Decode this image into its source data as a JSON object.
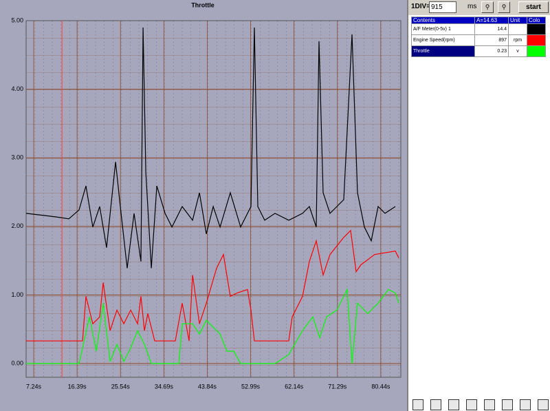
{
  "chart_data": {
    "type": "line",
    "title": "Throttle",
    "xlim": [
      5.64,
      84.67
    ],
    "ylim": [
      -0.2,
      5.0
    ],
    "xticks": [
      {
        "value": 7.24,
        "label": "7.24s"
      },
      {
        "value": 16.39,
        "label": "16.39s"
      },
      {
        "value": 25.54,
        "label": "25.54s"
      },
      {
        "value": 34.69,
        "label": "34.69s"
      },
      {
        "value": 43.84,
        "label": "43.84s"
      },
      {
        "value": 52.99,
        "label": "52.99s"
      },
      {
        "value": 62.14,
        "label": "62.14s"
      },
      {
        "value": 71.29,
        "label": "71.29s"
      },
      {
        "value": 80.44,
        "label": "80.44s"
      }
    ],
    "yticks": [
      {
        "value": 0,
        "label": "0.00"
      },
      {
        "value": 1,
        "label": "1.00"
      },
      {
        "value": 2,
        "label": "2.00"
      },
      {
        "value": 3,
        "label": "3.00"
      },
      {
        "value": 4,
        "label": "4.00"
      },
      {
        "value": 5,
        "label": "5.00"
      }
    ],
    "grid": true,
    "cursor_x": 13.2,
    "cursor_color": "#ff4040",
    "series": [
      {
        "name": "A/F Meter(0-5v) 1",
        "color": "#000000",
        "x": [
          5.64,
          11.74,
          14.64,
          16.81,
          18.26,
          19.71,
          21.16,
          22.61,
          24.5,
          25.51,
          26.96,
          28.41,
          29.86,
          30.3,
          30.88,
          32.04,
          33.2,
          34.94,
          36.39,
          38.56,
          40.74,
          42.19,
          43.64,
          45.09,
          46.54,
          48.71,
          50.89,
          53.06,
          53.79,
          54.51,
          55.96,
          58.14,
          61.04,
          63.94,
          65.39,
          66.84,
          67.42,
          68.29,
          69.74,
          71.19,
          72.64,
          74.38,
          75.54,
          76.99,
          78.44,
          79.89,
          81.34,
          83.51
        ],
        "values": [
          2.19,
          2.14,
          2.11,
          2.24,
          2.59,
          1.99,
          2.29,
          1.69,
          2.94,
          2.29,
          1.39,
          2.19,
          1.49,
          4.9,
          2.79,
          1.39,
          2.59,
          2.19,
          1.99,
          2.29,
          2.09,
          2.49,
          1.89,
          2.29,
          1.99,
          2.49,
          1.99,
          2.29,
          4.9,
          2.29,
          2.09,
          2.19,
          2.09,
          2.19,
          2.29,
          1.99,
          4.7,
          2.49,
          2.19,
          2.29,
          2.39,
          4.8,
          2.49,
          1.99,
          1.79,
          2.29,
          2.19,
          2.29
        ]
      },
      {
        "name": "Engine Speed(rpm)",
        "color": "#ff0000",
        "x": [
          5.64,
          17.54,
          18.26,
          19.71,
          21.16,
          21.89,
          23.34,
          24.79,
          26.24,
          27.69,
          29.14,
          29.86,
          30.59,
          31.31,
          32.76,
          37.11,
          38.56,
          40.01,
          40.74,
          42.19,
          43.64,
          45.81,
          47.26,
          48.71,
          50.16,
          52.34,
          53.06,
          53.79,
          61.04,
          61.76,
          63.94,
          65.39,
          66.84,
          68.29,
          69.74,
          72.64,
          74.09,
          75.25,
          76.26,
          79.16,
          83.51,
          84.24
        ],
        "values": [
          0.33,
          0.33,
          0.98,
          0.58,
          0.68,
          1.18,
          0.48,
          0.78,
          0.58,
          0.78,
          0.58,
          0.98,
          0.48,
          0.73,
          0.33,
          0.33,
          0.88,
          0.33,
          1.29,
          0.58,
          0.88,
          1.39,
          1.59,
          0.98,
          1.03,
          1.08,
          0.78,
          0.33,
          0.33,
          0.68,
          0.98,
          1.49,
          1.79,
          1.29,
          1.59,
          1.84,
          1.94,
          1.34,
          1.44,
          1.59,
          1.64,
          1.54
        ]
      },
      {
        "name": "Throttle",
        "color": "#00ff00",
        "x": [
          5.64,
          16.81,
          17.54,
          18.99,
          20.44,
          21.89,
          23.34,
          24.79,
          26.24,
          27.69,
          29.14,
          30.59,
          32.04,
          37.84,
          38.56,
          40.74,
          42.19,
          43.64,
          46.54,
          47.99,
          49.44,
          50.89,
          58.14,
          61.04,
          63.94,
          66.11,
          67.56,
          69.01,
          71.19,
          73.36,
          74.38,
          75.54,
          77.71,
          79.89,
          82.06,
          83.51,
          84.24
        ],
        "values": [
          0,
          0,
          0.23,
          0.68,
          0.18,
          0.88,
          0.03,
          0.28,
          0.03,
          0.23,
          0.48,
          0.28,
          0,
          0,
          0.58,
          0.58,
          0.43,
          0.63,
          0.43,
          0.18,
          0.18,
          0,
          0,
          0.13,
          0.48,
          0.68,
          0.38,
          0.68,
          0.78,
          1.08,
          0,
          0.88,
          0.73,
          0.88,
          1.08,
          1.03,
          0.88
        ]
      }
    ]
  },
  "panel": {
    "div_label": "1DIV=",
    "div_value": 915,
    "div_unit": "ms",
    "start_button": "start",
    "table": {
      "headers": [
        "Contents",
        "A=14.63",
        "Unit",
        "Colo"
      ],
      "rows": [
        {
          "content": "A/F Meter(0-5v) 1",
          "value": 14.4
        },
        {
          "content": "Engine Speed(rpm)",
          "value": 897,
          "unit": "rpm"
        },
        {
          "content": "Throttle",
          "value": 0.23,
          "unit": "v"
        }
      ]
    }
  }
}
